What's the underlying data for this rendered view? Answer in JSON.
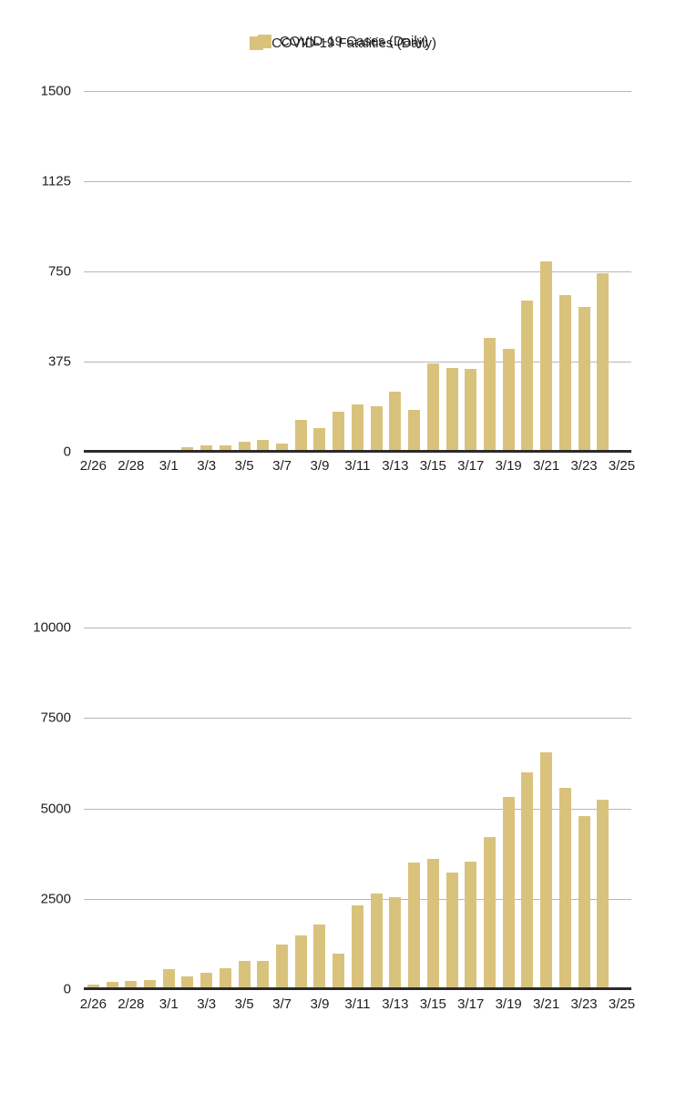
{
  "page": {
    "background": "#ffffff",
    "text_color": "#1f1f1f"
  },
  "chart_data": [
    {
      "type": "bar",
      "title": "COVID-19 Fatalities (Daily)",
      "legend": {
        "label": "COVID-19 Fatalities (Daily)",
        "swatch_color": "#d9c37c",
        "position": "top-center"
      },
      "categories": [
        "2/26",
        "2/27",
        "2/28",
        "2/29",
        "3/1",
        "3/2",
        "3/3",
        "3/4",
        "3/5",
        "3/6",
        "3/7",
        "3/8",
        "3/9",
        "3/10",
        "3/11",
        "3/12",
        "3/13",
        "3/14",
        "3/15",
        "3/16",
        "3/17",
        "3/18",
        "3/19",
        "3/20",
        "3/21",
        "3/22",
        "3/23",
        "3/24",
        "3/25"
      ],
      "values": [
        2,
        5,
        4,
        8,
        5,
        18,
        27,
        28,
        41,
        49,
        36,
        133,
        97,
        168,
        196,
        189,
        250,
        175,
        368,
        349,
        345,
        475,
        427,
        627,
        793,
        651,
        601,
        743,
        null
      ],
      "x_tick_labels": [
        "2/26",
        "2/28",
        "3/1",
        "3/3",
        "3/5",
        "3/7",
        "3/9",
        "3/11",
        "3/13",
        "3/15",
        "3/17",
        "3/19",
        "3/21",
        "3/23",
        "3/25"
      ],
      "y_ticks": [
        0,
        375,
        750,
        1125,
        1500
      ],
      "ylim": [
        0,
        1500
      ],
      "xlabel": "",
      "ylabel": "",
      "grid": true,
      "bar_color": "#d9c37c",
      "gridline_color": "#b7b7b7",
      "axis_color": "#2b2b2b"
    },
    {
      "type": "bar",
      "title": "COVID-19 Cases (Daily)",
      "legend": {
        "label": "COVID-19 Cases (Daily)",
        "swatch_color": "#d9c37c",
        "position": "top-center"
      },
      "categories": [
        "2/26",
        "2/27",
        "2/28",
        "2/29",
        "3/1",
        "3/2",
        "3/3",
        "3/4",
        "3/5",
        "3/6",
        "3/7",
        "3/8",
        "3/9",
        "3/10",
        "3/11",
        "3/12",
        "3/13",
        "3/14",
        "3/15",
        "3/16",
        "3/17",
        "3/18",
        "3/19",
        "3/20",
        "3/21",
        "3/22",
        "3/23",
        "3/24",
        "3/25"
      ],
      "values": [
        131,
        202,
        233,
        240,
        566,
        342,
        466,
        587,
        769,
        778,
        1247,
        1492,
        1797,
        977,
        2313,
        2651,
        2547,
        3497,
        3590,
        3233,
        3526,
        4207,
        5322,
        5986,
        6557,
        5560,
        4789,
        5249,
        null
      ],
      "x_tick_labels": [
        "2/26",
        "2/28",
        "3/1",
        "3/3",
        "3/5",
        "3/7",
        "3/9",
        "3/11",
        "3/13",
        "3/15",
        "3/17",
        "3/19",
        "3/21",
        "3/23",
        "3/25"
      ],
      "y_ticks": [
        0,
        2500,
        5000,
        7500,
        10000
      ],
      "ylim": [
        0,
        10000
      ],
      "xlabel": "",
      "ylabel": "",
      "grid": true,
      "bar_color": "#d9c37c",
      "gridline_color": "#b7b7b7",
      "axis_color": "#2b2b2b"
    }
  ]
}
